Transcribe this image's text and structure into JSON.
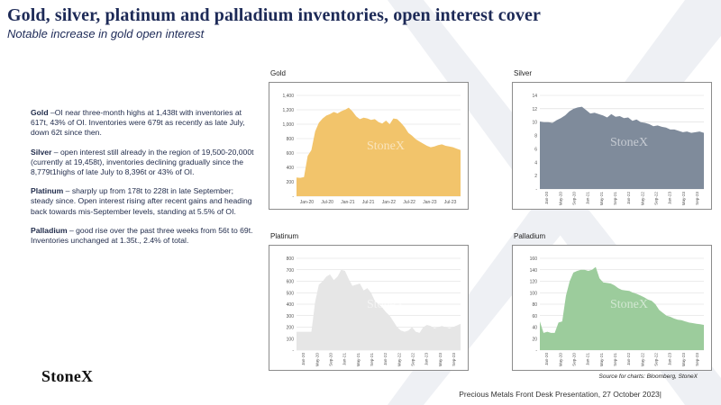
{
  "header": {
    "title": "Gold, silver, platinum and palladium inventories, open interest cover",
    "subtitle": "Notable increase in gold open interest"
  },
  "notes": [
    {
      "label": "Gold",
      "text": " –OI near three-month highs at 1,438t with inventories at 617t, 43% of OI.  Inventories were 679t as recently as late July, down 62t since then."
    },
    {
      "label": "Silver",
      "text": " – open interest still already in the region of 19,500-20,000t (currently at 19,458t), inventories declining gradually since the 8,779t1highs of late July to  8,396t or 43% of OI."
    },
    {
      "label": "Platinum",
      "text": " – sharply up from 178t to 228t in late September; steady since.  Open interest rising after recent gains and heading back towards mis-September levels, standing at 5.5% of OI."
    },
    {
      "label": "Palladium",
      "text": " – good rise over the past three weeks from 56t to  69t.  Inventories unchanged at 1.35t., 2.4% of total."
    }
  ],
  "watermark": "StoneX",
  "logo": "StoneX",
  "source": "Source for charts: Bloomberg, StoneX",
  "footer": "Precious Metals Front Desk Presentation, 27 October 2023|",
  "chart_data": [
    {
      "type": "area",
      "title": "Gold",
      "color": "#f2c46b",
      "ylim": [
        0,
        1400
      ],
      "yticks": [
        0,
        200,
        400,
        600,
        800,
        1000,
        1200,
        1400
      ],
      "ytick_labels": [
        "-",
        "200",
        "400",
        "600",
        "800",
        "1,000",
        "1,200",
        "1,400"
      ],
      "xtick_labels": [
        "Jan-20",
        "Jul-20",
        "Jan-21",
        "Jul-21",
        "Jan-22",
        "Jul-22",
        "Jan-23",
        "Jul-23"
      ],
      "xrot": 0,
      "values": [
        260,
        255,
        265,
        560,
        640,
        900,
        1020,
        1080,
        1120,
        1140,
        1170,
        1150,
        1180,
        1200,
        1230,
        1180,
        1110,
        1070,
        1090,
        1080,
        1060,
        1070,
        1030,
        1010,
        1050,
        1000,
        1080,
        1070,
        1020,
        960,
        880,
        840,
        790,
        760,
        730,
        700,
        680,
        690,
        710,
        720,
        700,
        690,
        680,
        660,
        640
      ]
    },
    {
      "type": "area",
      "title": "Silver",
      "color": "#7f8b9b",
      "ylim": [
        0,
        14
      ],
      "yticks": [
        0,
        2,
        4,
        6,
        8,
        10,
        12,
        14
      ],
      "ytick_labels": [
        "-",
        "2",
        "4",
        "6",
        "8",
        "10",
        "12",
        "14"
      ],
      "xtick_labels": [
        "Jan-20",
        "May-20",
        "Sep-20",
        "Jan-21",
        "May-21",
        "Sep-21",
        "Jan-22",
        "May-22",
        "Sep-22",
        "Jan-23",
        "May-23",
        "Sep-23"
      ],
      "xrot": -90,
      "values": [
        10.1,
        10.0,
        10.0,
        9.9,
        10.3,
        10.6,
        11.0,
        11.6,
        12.0,
        12.2,
        12.3,
        11.8,
        11.3,
        11.4,
        11.2,
        11.0,
        10.7,
        11.2,
        10.8,
        10.9,
        10.6,
        10.7,
        10.2,
        10.4,
        10.0,
        9.9,
        9.7,
        9.4,
        9.5,
        9.3,
        9.2,
        8.9,
        8.9,
        8.7,
        8.5,
        8.6,
        8.4,
        8.5,
        8.6,
        8.4
      ]
    },
    {
      "type": "area",
      "title": "Platinum",
      "color": "#e6e6e6",
      "ylim": [
        0,
        800
      ],
      "yticks": [
        0,
        100,
        200,
        300,
        400,
        500,
        600,
        700,
        800
      ],
      "ytick_labels": [
        "-",
        "100",
        "200",
        "300",
        "400",
        "500",
        "600",
        "700",
        "800"
      ],
      "xtick_labels": [
        "Jan-20",
        "May-20",
        "Sep-20",
        "Jan-21",
        "May-21",
        "Sep-21",
        "Jan-22",
        "May-22",
        "Sep-22",
        "Jan-23",
        "May-23",
        "Sep-23"
      ],
      "xrot": -90,
      "values": [
        160,
        160,
        160,
        160,
        160,
        420,
        570,
        600,
        640,
        660,
        610,
        640,
        700,
        690,
        620,
        560,
        570,
        580,
        520,
        540,
        500,
        430,
        400,
        370,
        330,
        300,
        250,
        200,
        170,
        160,
        170,
        200,
        160,
        150,
        200,
        220,
        210,
        190,
        200,
        210,
        200,
        190,
        200,
        215,
        228
      ]
    },
    {
      "type": "area",
      "title": "Palladium",
      "color": "#9ccc9c",
      "ylim": [
        0,
        160
      ],
      "yticks": [
        0,
        20,
        40,
        60,
        80,
        100,
        120,
        140,
        160
      ],
      "ytick_labels": [
        "-",
        "20",
        "40",
        "60",
        "80",
        "100",
        "120",
        "140",
        "160"
      ],
      "xtick_labels": [
        "Jan-20",
        "May-20",
        "Sep-20",
        "Jan-21",
        "May-21",
        "Sep-21",
        "Jan-22",
        "May-22",
        "Sep-22",
        "Jan-23",
        "May-23",
        "Sep-23"
      ],
      "xrot": -90,
      "values": [
        50,
        30,
        32,
        30,
        30,
        48,
        50,
        95,
        120,
        135,
        138,
        140,
        140,
        138,
        140,
        145,
        125,
        118,
        117,
        116,
        113,
        108,
        105,
        104,
        103,
        100,
        98,
        95,
        92,
        88,
        86,
        80,
        70,
        65,
        60,
        58,
        55,
        53,
        52,
        50,
        48,
        47,
        46,
        45,
        44
      ]
    }
  ]
}
